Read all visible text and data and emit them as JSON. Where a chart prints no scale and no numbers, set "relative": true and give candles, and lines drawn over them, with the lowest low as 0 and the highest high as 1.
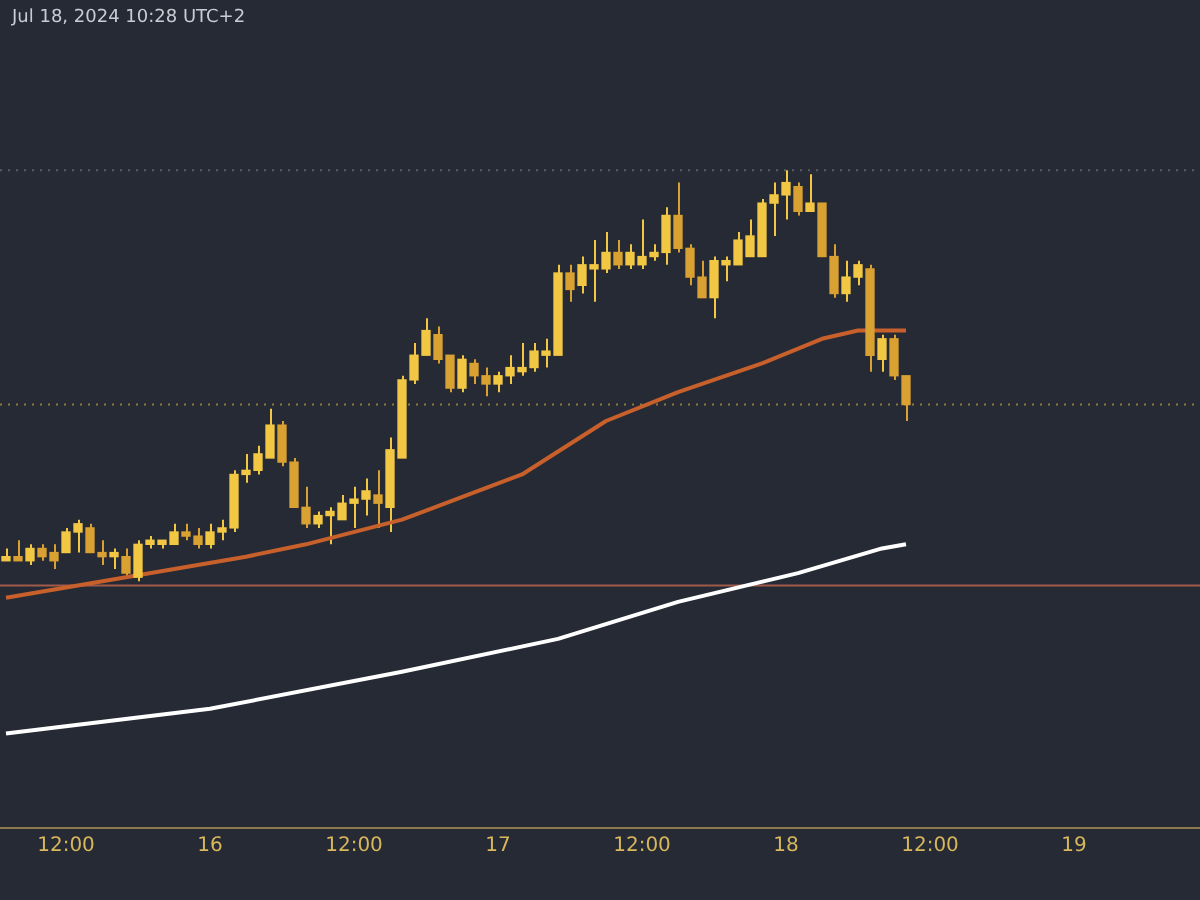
{
  "chart_data": {
    "type": "candlestick",
    "relative": true,
    "annotations": [
      "Jul 18, 2024 10:28 UTC+2"
    ],
    "x": [
      "2024-07-15T07:00",
      "2024-07-15T08:00",
      "2024-07-15T09:00",
      "2024-07-15T10:00",
      "2024-07-15T11:00",
      "2024-07-15T12:00",
      "2024-07-15T13:00",
      "2024-07-15T14:00",
      "2024-07-15T15:00",
      "2024-07-15T16:00",
      "2024-07-15T17:00",
      "2024-07-15T18:00",
      "2024-07-15T19:00",
      "2024-07-15T20:00",
      "2024-07-15T21:00",
      "2024-07-15T22:00",
      "2024-07-15T23:00",
      "2024-07-16T00:00",
      "2024-07-16T01:00",
      "2024-07-16T02:00",
      "2024-07-16T03:00",
      "2024-07-16T04:00",
      "2024-07-16T05:00",
      "2024-07-16T06:00",
      "2024-07-16T07:00",
      "2024-07-16T08:00",
      "2024-07-16T09:00",
      "2024-07-16T10:00",
      "2024-07-16T11:00",
      "2024-07-16T12:00",
      "2024-07-16T13:00",
      "2024-07-16T14:00",
      "2024-07-16T15:00",
      "2024-07-16T16:00",
      "2024-07-16T17:00",
      "2024-07-16T18:00",
      "2024-07-16T19:00",
      "2024-07-16T20:00",
      "2024-07-16T21:00",
      "2024-07-16T22:00",
      "2024-07-16T23:00",
      "2024-07-17T00:00",
      "2024-07-17T01:00",
      "2024-07-17T02:00",
      "2024-07-17T03:00",
      "2024-07-17T04:00",
      "2024-07-17T05:00",
      "2024-07-17T06:00",
      "2024-07-17T07:00",
      "2024-07-17T08:00",
      "2024-07-17T09:00",
      "2024-07-17T10:00",
      "2024-07-17T11:00",
      "2024-07-17T12:00",
      "2024-07-17T13:00",
      "2024-07-17T14:00",
      "2024-07-17T15:00",
      "2024-07-17T16:00",
      "2024-07-17T17:00",
      "2024-07-17T18:00",
      "2024-07-17T19:00",
      "2024-07-17T20:00",
      "2024-07-17T21:00",
      "2024-07-17T22:00",
      "2024-07-17T23:00",
      "2024-07-18T00:00",
      "2024-07-18T01:00",
      "2024-07-18T02:00",
      "2024-07-18T03:00",
      "2024-07-18T04:00",
      "2024-07-18T05:00",
      "2024-07-18T06:00",
      "2024-07-18T07:00",
      "2024-07-18T08:00",
      "2024-07-18T09:00",
      "2024-07-18T10:00"
    ],
    "colors": [
      "#f2c744",
      "#d9a032",
      "#f2c744",
      "#d9a032",
      "#d9a032",
      "#f2c744",
      "#f2c744",
      "#d9a032",
      "#d9a032",
      "#f2c744",
      "#d9a032",
      "#f2c744",
      "#f2c744",
      "#f2c744",
      "#f2c744",
      "#d9a032",
      "#d9a032",
      "#f2c744",
      "#f2c744",
      "#f2c744",
      "#f2c744",
      "#f2c744",
      "#f2c744",
      "#d9a032",
      "#d9a032",
      "#d9a032",
      "#f2c744",
      "#f2c744",
      "#f2c744",
      "#f2c744",
      "#f2c744",
      "#d9a032",
      "#f2c744",
      "#f2c744",
      "#f2c744",
      "#f2c744",
      "#d9a032",
      "#d9a032",
      "#f2c744",
      "#d9a032",
      "#d9a032",
      "#f2c744",
      "#f2c744",
      "#f2c744",
      "#f2c744",
      "#f2c744",
      "#f2c744",
      "#d9a032",
      "#f2c744",
      "#f2c744",
      "#f2c744",
      "#d9a032",
      "#f2c744",
      "#f2c744",
      "#f2c744",
      "#f2c744",
      "#d9a032",
      "#d9a032",
      "#d9a032",
      "#f2c744",
      "#f2c744",
      "#f2c744",
      "#f2c744",
      "#f2c744",
      "#f2c744",
      "#f2c744",
      "#d9a032",
      "#f2c744",
      "#d9a032",
      "#d9a032",
      "#f2c744",
      "#f2c744",
      "#d9a032",
      "#f2c744",
      "#d9a032",
      "#d9a032"
    ],
    "ohlc": [
      [
        0.05,
        0.08,
        0.05,
        0.06
      ],
      [
        0.06,
        0.1,
        0.05,
        0.05
      ],
      [
        0.05,
        0.09,
        0.04,
        0.08
      ],
      [
        0.08,
        0.09,
        0.05,
        0.06
      ],
      [
        0.07,
        0.09,
        0.03,
        0.05
      ],
      [
        0.07,
        0.13,
        0.07,
        0.12
      ],
      [
        0.12,
        0.15,
        0.07,
        0.14
      ],
      [
        0.13,
        0.14,
        0.07,
        0.07
      ],
      [
        0.07,
        0.1,
        0.04,
        0.06
      ],
      [
        0.06,
        0.08,
        0.03,
        0.07
      ],
      [
        0.06,
        0.08,
        0.01,
        0.02
      ],
      [
        0.01,
        0.1,
        0,
        0.09
      ],
      [
        0.09,
        0.11,
        0.08,
        0.1
      ],
      [
        0.09,
        0.1,
        0.08,
        0.1
      ],
      [
        0.09,
        0.14,
        0.09,
        0.12
      ],
      [
        0.12,
        0.14,
        0.1,
        0.11
      ],
      [
        0.11,
        0.13,
        0.08,
        0.09
      ],
      [
        0.09,
        0.14,
        0.08,
        0.12
      ],
      [
        0.12,
        0.15,
        0.1,
        0.13
      ],
      [
        0.13,
        0.27,
        0.12,
        0.26
      ],
      [
        0.26,
        0.31,
        0.24,
        0.27
      ],
      [
        0.27,
        0.33,
        0.26,
        0.31
      ],
      [
        0.3,
        0.42,
        0.3,
        0.38
      ],
      [
        0.38,
        0.39,
        0.28,
        0.29
      ],
      [
        0.29,
        0.3,
        0.18,
        0.18
      ],
      [
        0.18,
        0.23,
        0.13,
        0.14
      ],
      [
        0.14,
        0.17,
        0.13,
        0.16
      ],
      [
        0.16,
        0.18,
        0.09,
        0.17
      ],
      [
        0.15,
        0.21,
        0.15,
        0.19
      ],
      [
        0.19,
        0.23,
        0.13,
        0.2
      ],
      [
        0.2,
        0.25,
        0.16,
        0.22
      ],
      [
        0.21,
        0.27,
        0.13,
        0.19
      ],
      [
        0.18,
        0.35,
        0.12,
        0.32
      ],
      [
        0.3,
        0.5,
        0.3,
        0.49
      ],
      [
        0.49,
        0.58,
        0.48,
        0.55
      ],
      [
        0.55,
        0.64,
        0.55,
        0.61
      ],
      [
        0.6,
        0.62,
        0.53,
        0.54
      ],
      [
        0.55,
        0.55,
        0.46,
        0.47
      ],
      [
        0.47,
        0.55,
        0.46,
        0.54
      ],
      [
        0.53,
        0.54,
        0.48,
        0.5
      ],
      [
        0.5,
        0.52,
        0.45,
        0.48
      ],
      [
        0.48,
        0.51,
        0.46,
        0.5
      ],
      [
        0.5,
        0.55,
        0.48,
        0.52
      ],
      [
        0.51,
        0.58,
        0.5,
        0.52
      ],
      [
        0.52,
        0.58,
        0.51,
        0.56
      ],
      [
        0.55,
        0.59,
        0.52,
        0.56
      ],
      [
        0.55,
        0.77,
        0.55,
        0.75
      ],
      [
        0.75,
        0.77,
        0.68,
        0.71
      ],
      [
        0.72,
        0.79,
        0.7,
        0.77
      ],
      [
        0.76,
        0.83,
        0.68,
        0.77
      ],
      [
        0.76,
        0.85,
        0.75,
        0.8
      ],
      [
        0.8,
        0.83,
        0.76,
        0.77
      ],
      [
        0.77,
        0.82,
        0.76,
        0.8
      ],
      [
        0.77,
        0.88,
        0.76,
        0.79
      ],
      [
        0.79,
        0.82,
        0.78,
        0.8
      ],
      [
        0.8,
        0.91,
        0.77,
        0.89
      ],
      [
        0.89,
        0.97,
        0.8,
        0.81
      ],
      [
        0.81,
        0.82,
        0.72,
        0.74
      ],
      [
        0.74,
        0.78,
        0.69,
        0.69
      ],
      [
        0.69,
        0.79,
        0.64,
        0.78
      ],
      [
        0.77,
        0.79,
        0.73,
        0.78
      ],
      [
        0.77,
        0.85,
        0.77,
        0.83
      ],
      [
        0.79,
        0.88,
        0.79,
        0.84
      ],
      [
        0.79,
        0.93,
        0.79,
        0.92
      ],
      [
        0.92,
        0.97,
        0.84,
        0.94
      ],
      [
        0.94,
        1,
        0.88,
        0.97
      ],
      [
        0.96,
        0.97,
        0.89,
        0.9
      ],
      [
        0.9,
        0.99,
        0.9,
        0.92
      ],
      [
        0.92,
        0.92,
        0.79,
        0.79
      ],
      [
        0.79,
        0.82,
        0.69,
        0.7
      ],
      [
        0.7,
        0.78,
        0.68,
        0.74
      ],
      [
        0.74,
        0.78,
        0.72,
        0.77
      ],
      [
        0.76,
        0.77,
        0.51,
        0.55
      ],
      [
        0.54,
        0.6,
        0.51,
        0.59
      ],
      [
        0.59,
        0.6,
        0.49,
        0.5
      ],
      [
        0.5,
        0.5,
        0.39,
        0.43
      ]
    ],
    "series": [
      {
        "type": "line",
        "color": "#c8602c",
        "x": [
          "2024-07-15T07:00",
          "2024-07-15T17:00",
          "2024-07-16T03:00",
          "2024-07-16T08:00",
          "2024-07-16T16:00",
          "2024-07-17T02:00",
          "2024-07-17T09:00",
          "2024-07-17T15:00",
          "2024-07-17T22:00",
          "2024-07-18T03:00",
          "2024-07-18T06:00",
          "2024-07-18T10:00"
        ],
        "values": [
          -0.04,
          0.01,
          0.06,
          0.09,
          0.15,
          0.26,
          0.39,
          0.46,
          0.53,
          0.59,
          0.61,
          0.61
        ]
      },
      {
        "type": "line",
        "color": "#ffffff",
        "x": [
          "2024-07-15T07:00",
          "2024-07-16T00:00",
          "2024-07-16T16:00",
          "2024-07-17T05:00",
          "2024-07-17T15:00",
          "2024-07-18T01:00",
          "2024-07-18T08:00",
          "2024-07-18T10:00"
        ],
        "values": [
          -0.37,
          -0.31,
          -0.22,
          -0.14,
          -0.05,
          0.02,
          0.08,
          0.09
        ]
      }
    ],
    "ref_lines": [
      {
        "axis": "y",
        "value": 1,
        "color": "#5a5e6a",
        "line_style": "dotted"
      },
      {
        "axis": "y",
        "value": 0.43,
        "color": "#8a7a40",
        "line_style": "dotted"
      },
      {
        "axis": "y",
        "value": -0.01,
        "color": "#a05a4a",
        "line_style": "solid"
      }
    ],
    "xlim": [
      "2024-07-15T06:30",
      "2024-07-19T10:30"
    ],
    "xticks": [
      {
        "value": "2024-07-15T12:00",
        "label": "12:00"
      },
      {
        "value": "2024-07-16",
        "label": "16"
      },
      {
        "value": "2024-07-16T12:00",
        "label": "12:00"
      },
      {
        "value": "2024-07-17",
        "label": "17"
      },
      {
        "value": "2024-07-17T12:00",
        "label": "12:00"
      },
      {
        "value": "2024-07-18",
        "label": "18"
      },
      {
        "value": "2024-07-18T12:00",
        "label": "12:00"
      },
      {
        "value": "2024-07-19",
        "label": "19"
      }
    ],
    "tick_labels": "x",
    "grid": false,
    "legend": false
  }
}
